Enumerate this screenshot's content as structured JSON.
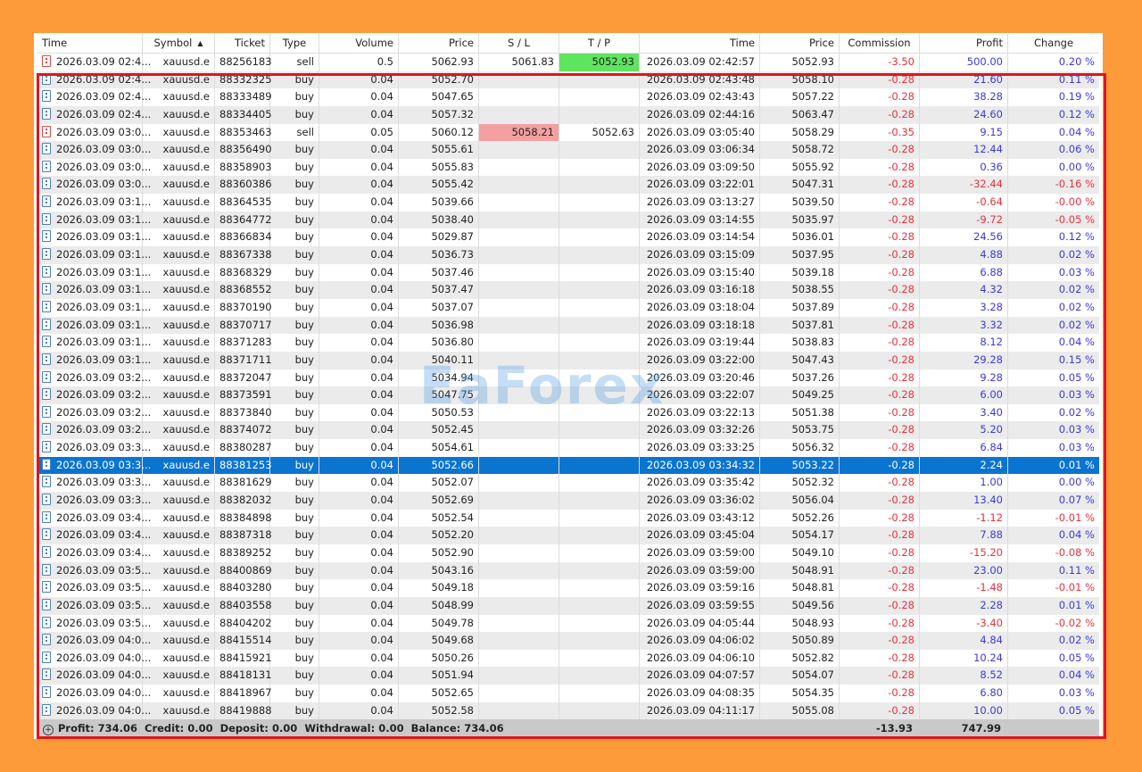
{
  "columns": [
    "Time",
    "Symbol",
    "Ticket",
    "Type",
    "Volume",
    "Price",
    "S / L",
    "T / P",
    "Time",
    "Price",
    "Commission",
    "Profit",
    "Change"
  ],
  "sort_column": "Symbol",
  "selected_ticket": "88381253",
  "colors": {
    "accent_selected": "#0a74d1",
    "negative": "#e8313c",
    "positive": "#3d3ad8",
    "stop_loss_bg": "#f4a0a0",
    "take_profit_bg": "#5fe45f",
    "highlight_box": "#e3141b",
    "background": "#fd9a3a"
  },
  "rows": [
    [
      "2026.03.09 02:4...",
      "xauusd.e",
      "88256183",
      "sell",
      "0.5",
      "5062.93",
      "5061.83",
      "5052.93",
      "2026.03.09 02:42:57",
      "5052.93",
      "-3.50",
      "500.00",
      "0.20 %"
    ],
    [
      "2026.03.09 02:4...",
      "xauusd.e",
      "88332325",
      "buy",
      "0.04",
      "5052.70",
      "",
      "",
      "2026.03.09 02:43:48",
      "5058.10",
      "-0.28",
      "21.60",
      "0.11 %"
    ],
    [
      "2026.03.09 02:4...",
      "xauusd.e",
      "88333489",
      "buy",
      "0.04",
      "5047.65",
      "",
      "",
      "2026.03.09 02:43:43",
      "5057.22",
      "-0.28",
      "38.28",
      "0.19 %"
    ],
    [
      "2026.03.09 02:4...",
      "xauusd.e",
      "88334405",
      "buy",
      "0.04",
      "5057.32",
      "",
      "",
      "2026.03.09 02:44:16",
      "5063.47",
      "-0.28",
      "24.60",
      "0.12 %"
    ],
    [
      "2026.03.09 03:0...",
      "xauusd.e",
      "88353463",
      "sell",
      "0.05",
      "5060.12",
      "5058.21",
      "5052.63",
      "2026.03.09 03:05:40",
      "5058.29",
      "-0.35",
      "9.15",
      "0.04 %"
    ],
    [
      "2026.03.09 03:0...",
      "xauusd.e",
      "88356490",
      "buy",
      "0.04",
      "5055.61",
      "",
      "",
      "2026.03.09 03:06:34",
      "5058.72",
      "-0.28",
      "12.44",
      "0.06 %"
    ],
    [
      "2026.03.09 03:0...",
      "xauusd.e",
      "88358903",
      "buy",
      "0.04",
      "5055.83",
      "",
      "",
      "2026.03.09 03:09:50",
      "5055.92",
      "-0.28",
      "0.36",
      "0.00 %"
    ],
    [
      "2026.03.09 03:0...",
      "xauusd.e",
      "88360386",
      "buy",
      "0.04",
      "5055.42",
      "",
      "",
      "2026.03.09 03:22:01",
      "5047.31",
      "-0.28",
      "-32.44",
      "-0.16 %"
    ],
    [
      "2026.03.09 03:1...",
      "xauusd.e",
      "88364535",
      "buy",
      "0.04",
      "5039.66",
      "",
      "",
      "2026.03.09 03:13:27",
      "5039.50",
      "-0.28",
      "-0.64",
      "-0.00 %"
    ],
    [
      "2026.03.09 03:1...",
      "xauusd.e",
      "88364772",
      "buy",
      "0.04",
      "5038.40",
      "",
      "",
      "2026.03.09 03:14:55",
      "5035.97",
      "-0.28",
      "-9.72",
      "-0.05 %"
    ],
    [
      "2026.03.09 03:1...",
      "xauusd.e",
      "88366834",
      "buy",
      "0.04",
      "5029.87",
      "",
      "",
      "2026.03.09 03:14:54",
      "5036.01",
      "-0.28",
      "24.56",
      "0.12 %"
    ],
    [
      "2026.03.09 03:1...",
      "xauusd.e",
      "88367338",
      "buy",
      "0.04",
      "5036.73",
      "",
      "",
      "2026.03.09 03:15:09",
      "5037.95",
      "-0.28",
      "4.88",
      "0.02 %"
    ],
    [
      "2026.03.09 03:1...",
      "xauusd.e",
      "88368329",
      "buy",
      "0.04",
      "5037.46",
      "",
      "",
      "2026.03.09 03:15:40",
      "5039.18",
      "-0.28",
      "6.88",
      "0.03 %"
    ],
    [
      "2026.03.09 03:1...",
      "xauusd.e",
      "88368552",
      "buy",
      "0.04",
      "5037.47",
      "",
      "",
      "2026.03.09 03:16:18",
      "5038.55",
      "-0.28",
      "4.32",
      "0.02 %"
    ],
    [
      "2026.03.09 03:1...",
      "xauusd.e",
      "88370190",
      "buy",
      "0.04",
      "5037.07",
      "",
      "",
      "2026.03.09 03:18:04",
      "5037.89",
      "-0.28",
      "3.28",
      "0.02 %"
    ],
    [
      "2026.03.09 03:1...",
      "xauusd.e",
      "88370717",
      "buy",
      "0.04",
      "5036.98",
      "",
      "",
      "2026.03.09 03:18:18",
      "5037.81",
      "-0.28",
      "3.32",
      "0.02 %"
    ],
    [
      "2026.03.09 03:1...",
      "xauusd.e",
      "88371283",
      "buy",
      "0.04",
      "5036.80",
      "",
      "",
      "2026.03.09 03:19:44",
      "5038.83",
      "-0.28",
      "8.12",
      "0.04 %"
    ],
    [
      "2026.03.09 03:1...",
      "xauusd.e",
      "88371711",
      "buy",
      "0.04",
      "5040.11",
      "",
      "",
      "2026.03.09 03:22:00",
      "5047.43",
      "-0.28",
      "29.28",
      "0.15 %"
    ],
    [
      "2026.03.09 03:2...",
      "xauusd.e",
      "88372047",
      "buy",
      "0.04",
      "5034.94",
      "",
      "",
      "2026.03.09 03:20:46",
      "5037.26",
      "-0.28",
      "9.28",
      "0.05 %"
    ],
    [
      "2026.03.09 03:2...",
      "xauusd.e",
      "88373591",
      "buy",
      "0.04",
      "5047.75",
      "",
      "",
      "2026.03.09 03:22:07",
      "5049.25",
      "-0.28",
      "6.00",
      "0.03 %"
    ],
    [
      "2026.03.09 03:2...",
      "xauusd.e",
      "88373840",
      "buy",
      "0.04",
      "5050.53",
      "",
      "",
      "2026.03.09 03:22:13",
      "5051.38",
      "-0.28",
      "3.40",
      "0.02 %"
    ],
    [
      "2026.03.09 03:2...",
      "xauusd.e",
      "88374072",
      "buy",
      "0.04",
      "5052.45",
      "",
      "",
      "2026.03.09 03:32:26",
      "5053.75",
      "-0.28",
      "5.20",
      "0.03 %"
    ],
    [
      "2026.03.09 03:3...",
      "xauusd.e",
      "88380287",
      "buy",
      "0.04",
      "5054.61",
      "",
      "",
      "2026.03.09 03:33:25",
      "5056.32",
      "-0.28",
      "6.84",
      "0.03 %"
    ],
    [
      "2026.03.09 03:3...",
      "xauusd.e",
      "88381253",
      "buy",
      "0.04",
      "5052.66",
      "",
      "",
      "2026.03.09 03:34:32",
      "5053.22",
      "-0.28",
      "2.24",
      "0.01 %"
    ],
    [
      "2026.03.09 03:3...",
      "xauusd.e",
      "88381629",
      "buy",
      "0.04",
      "5052.07",
      "",
      "",
      "2026.03.09 03:35:42",
      "5052.32",
      "-0.28",
      "1.00",
      "0.00 %"
    ],
    [
      "2026.03.09 03:3...",
      "xauusd.e",
      "88382032",
      "buy",
      "0.04",
      "5052.69",
      "",
      "",
      "2026.03.09 03:36:02",
      "5056.04",
      "-0.28",
      "13.40",
      "0.07 %"
    ],
    [
      "2026.03.09 03:4...",
      "xauusd.e",
      "88384898",
      "buy",
      "0.04",
      "5052.54",
      "",
      "",
      "2026.03.09 03:43:12",
      "5052.26",
      "-0.28",
      "-1.12",
      "-0.01 %"
    ],
    [
      "2026.03.09 03:4...",
      "xauusd.e",
      "88387318",
      "buy",
      "0.04",
      "5052.20",
      "",
      "",
      "2026.03.09 03:45:04",
      "5054.17",
      "-0.28",
      "7.88",
      "0.04 %"
    ],
    [
      "2026.03.09 03:4...",
      "xauusd.e",
      "88389252",
      "buy",
      "0.04",
      "5052.90",
      "",
      "",
      "2026.03.09 03:59:00",
      "5049.10",
      "-0.28",
      "-15.20",
      "-0.08 %"
    ],
    [
      "2026.03.09 03:5...",
      "xauusd.e",
      "88400869",
      "buy",
      "0.04",
      "5043.16",
      "",
      "",
      "2026.03.09 03:59:00",
      "5048.91",
      "-0.28",
      "23.00",
      "0.11 %"
    ],
    [
      "2026.03.09 03:5...",
      "xauusd.e",
      "88403280",
      "buy",
      "0.04",
      "5049.18",
      "",
      "",
      "2026.03.09 03:59:16",
      "5048.81",
      "-0.28",
      "-1.48",
      "-0.01 %"
    ],
    [
      "2026.03.09 03:5...",
      "xauusd.e",
      "88403558",
      "buy",
      "0.04",
      "5048.99",
      "",
      "",
      "2026.03.09 03:59:55",
      "5049.56",
      "-0.28",
      "2.28",
      "0.01 %"
    ],
    [
      "2026.03.09 03:5...",
      "xauusd.e",
      "88404202",
      "buy",
      "0.04",
      "5049.78",
      "",
      "",
      "2026.03.09 04:05:44",
      "5048.93",
      "-0.28",
      "-3.40",
      "-0.02 %"
    ],
    [
      "2026.03.09 04:0...",
      "xauusd.e",
      "88415514",
      "buy",
      "0.04",
      "5049.68",
      "",
      "",
      "2026.03.09 04:06:02",
      "5050.89",
      "-0.28",
      "4.84",
      "0.02 %"
    ],
    [
      "2026.03.09 04:0...",
      "xauusd.e",
      "88415921",
      "buy",
      "0.04",
      "5050.26",
      "",
      "",
      "2026.03.09 04:06:10",
      "5052.82",
      "-0.28",
      "10.24",
      "0.05 %"
    ],
    [
      "2026.03.09 04:0...",
      "xauusd.e",
      "88418131",
      "buy",
      "0.04",
      "5051.94",
      "",
      "",
      "2026.03.09 04:07:57",
      "5054.07",
      "-0.28",
      "8.52",
      "0.04 %"
    ],
    [
      "2026.03.09 04:0...",
      "xauusd.e",
      "88418967",
      "buy",
      "0.04",
      "5052.65",
      "",
      "",
      "2026.03.09 04:08:35",
      "5054.35",
      "-0.28",
      "6.80",
      "0.03 %"
    ],
    [
      "2026.03.09 04:0...",
      "xauusd.e",
      "88419888",
      "buy",
      "0.04",
      "5052.58",
      "",
      "",
      "2026.03.09 04:11:17",
      "5055.08",
      "-0.28",
      "10.00",
      "0.05 %"
    ]
  ],
  "footer": {
    "summary": "Profit: 734.06  Credit: 0.00  Deposit: 0.00  Withdrawal: 0.00  Balance: 734.06",
    "commission_total": "-13.93",
    "profit_total": "747.99"
  },
  "watermark": "EaForex"
}
